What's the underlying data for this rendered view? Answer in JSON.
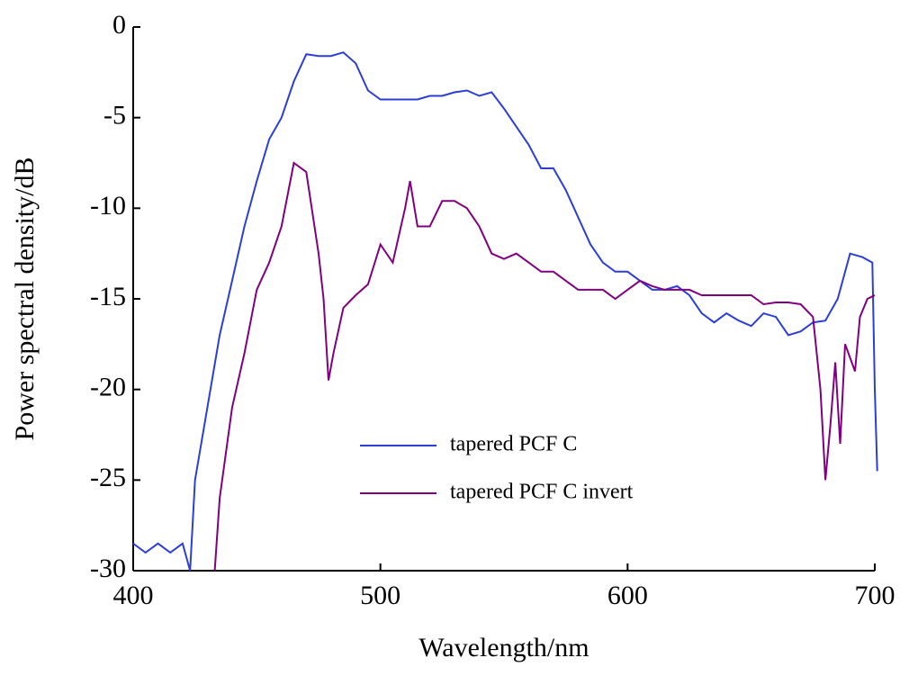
{
  "chart_data": {
    "type": "line",
    "x_label": "Wavelength/nm",
    "y_label": "Power spectral density/dB",
    "xlim": [
      400,
      700
    ],
    "xticks": [
      400,
      500,
      600,
      700
    ],
    "ylim": [
      -30,
      0
    ],
    "yticks": [
      0,
      -5,
      -10,
      -15,
      -20,
      -25,
      -30
    ],
    "legend": "lower center",
    "series": [
      {
        "name": "tapered PCF C",
        "color": "#2b3fd6",
        "x": [
          400,
          405,
          410,
          415,
          420,
          423,
          425,
          430,
          435,
          440,
          445,
          450,
          455,
          460,
          465,
          470,
          475,
          480,
          485,
          490,
          495,
          500,
          505,
          510,
          515,
          520,
          525,
          530,
          535,
          540,
          545,
          550,
          555,
          560,
          565,
          570,
          575,
          580,
          585,
          590,
          595,
          600,
          605,
          610,
          615,
          620,
          625,
          630,
          635,
          640,
          645,
          650,
          655,
          660,
          665,
          670,
          675,
          680,
          685,
          690,
          695,
          699,
          700,
          701
        ],
        "values": [
          -28.5,
          -29,
          -28.5,
          -29,
          -28.5,
          -30,
          -25,
          -21,
          -17,
          -14,
          -11,
          -8.5,
          -6.2,
          -5,
          -3,
          -1.5,
          -1.6,
          -1.6,
          -1.4,
          -2,
          -3.5,
          -4,
          -4,
          -4,
          -4,
          -3.8,
          -3.8,
          -3.6,
          -3.5,
          -3.8,
          -3.6,
          -4.5,
          -5.5,
          -6.5,
          -7.8,
          -7.8,
          -9,
          -10.5,
          -12,
          -13,
          -13.5,
          -13.5,
          -14,
          -14.5,
          -14.5,
          -14.3,
          -14.8,
          -15.8,
          -16.3,
          -15.8,
          -16.2,
          -16.5,
          -15.8,
          -16,
          -17,
          -16.8,
          -16.3,
          -16.2,
          -15,
          -12.5,
          -12.7,
          -13,
          -20,
          -24.5
        ]
      },
      {
        "name": "tapered PCF C invert",
        "color": "#800080",
        "x": [
          433,
          435,
          440,
          445,
          450,
          455,
          460,
          465,
          470,
          475,
          477,
          479,
          481,
          485,
          490,
          495,
          500,
          505,
          510,
          512,
          515,
          520,
          525,
          530,
          535,
          540,
          545,
          550,
          555,
          560,
          565,
          570,
          575,
          580,
          585,
          590,
          595,
          600,
          605,
          610,
          615,
          620,
          625,
          630,
          635,
          640,
          645,
          650,
          655,
          660,
          665,
          670,
          675,
          678,
          680,
          682,
          684,
          686,
          688,
          692,
          694,
          697,
          700
        ],
        "values": [
          -30,
          -26,
          -21,
          -18,
          -14.5,
          -13,
          -11,
          -7.5,
          -8,
          -12.5,
          -15,
          -19.5,
          -18,
          -15.5,
          -14.8,
          -14.2,
          -12,
          -13,
          -10,
          -8.5,
          -11,
          -11,
          -9.6,
          -9.6,
          -10,
          -11,
          -12.5,
          -12.8,
          -12.5,
          -13,
          -13.5,
          -13.5,
          -14,
          -14.5,
          -14.5,
          -14.5,
          -15,
          -14.5,
          -14,
          -14.3,
          -14.5,
          -14.5,
          -14.5,
          -14.8,
          -14.8,
          -14.8,
          -14.8,
          -14.8,
          -15.3,
          -15.2,
          -15.2,
          -15.3,
          -16,
          -20,
          -25,
          -22,
          -18.5,
          -23,
          -17.5,
          -19,
          -16,
          -15,
          -14.8
        ]
      }
    ]
  }
}
